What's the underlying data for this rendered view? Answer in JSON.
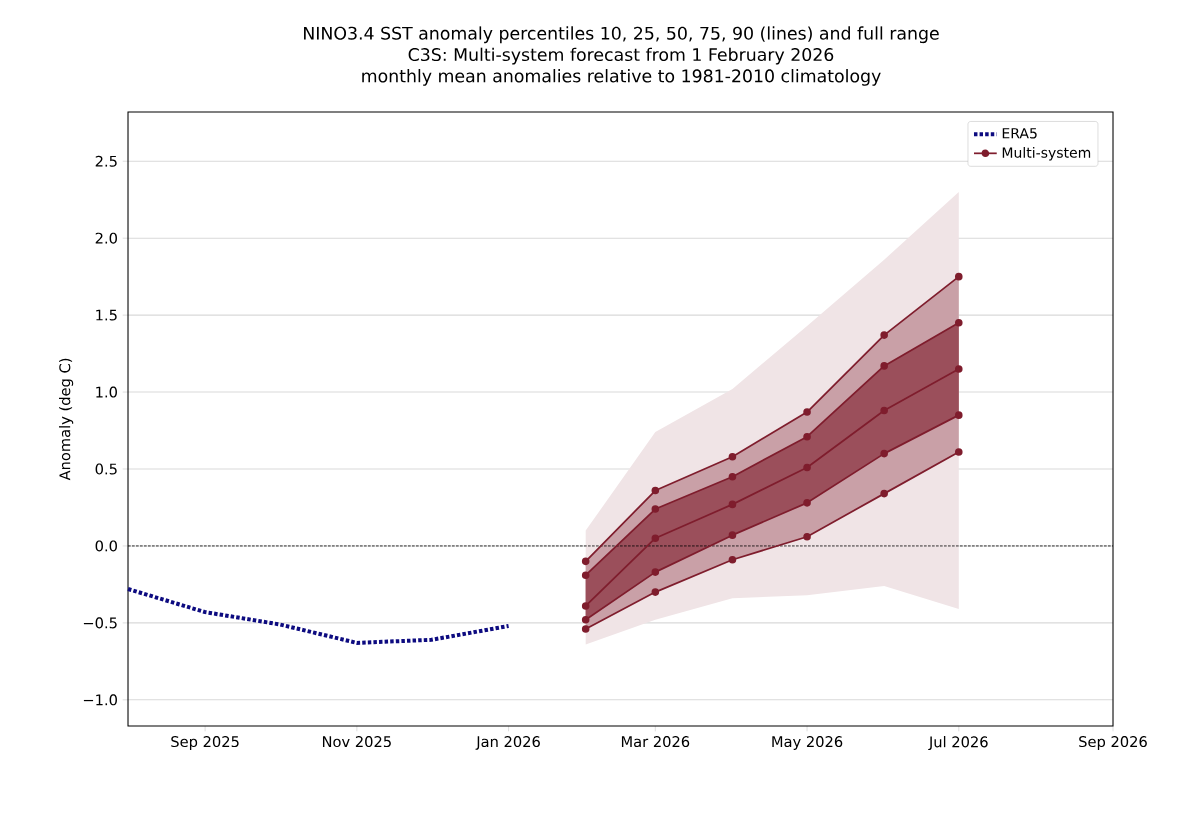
{
  "chart_data": {
    "type": "line",
    "title": "NINO3.4 SST anomaly percentiles 10, 25, 50, 75, 90 (lines) and full range",
    "subtitle": "C3S: Multi-system forecast from 1 February 2026",
    "annotations": [
      "monthly mean anomalies relative to 1981-2010 climatology"
    ],
    "ylabel": "Anomaly (deg C)",
    "x": [
      "2026-02",
      "2026-03",
      "2026-04",
      "2026-05",
      "2026-06",
      "2026-07"
    ],
    "series": [
      {
        "name": "ERA5",
        "color": "#0d0b80",
        "line_style": "dotted",
        "marker": "none",
        "x": [
          "2025-08",
          "2025-09",
          "2025-10",
          "2025-11",
          "2025-12",
          "2026-01"
        ],
        "values": [
          -0.28,
          -0.43,
          -0.51,
          -0.63,
          -0.61,
          -0.52
        ]
      },
      {
        "color": "#7f1d2d",
        "marker": "circle",
        "line_style": "solid",
        "lower": [
          -0.64,
          -0.48,
          -0.34,
          -0.32,
          -0.26,
          -0.41
        ],
        "upper": [
          0.1,
          0.74,
          1.02,
          1.43,
          1.86,
          2.3
        ],
        "values": [
          -0.54,
          -0.3,
          -0.09,
          0.06,
          0.34,
          0.61
        ]
      },
      {
        "color": "#7f1d2d",
        "marker": "circle",
        "line_style": "solid",
        "lower": [
          -0.54,
          -0.3,
          -0.09,
          0.06,
          0.34,
          0.61
        ],
        "upper": [
          -0.1,
          0.36,
          0.58,
          0.87,
          1.37,
          1.75
        ],
        "values": [
          -0.48,
          -0.17,
          0.07,
          0.28,
          0.6,
          0.85
        ]
      },
      {
        "name": "Multi-system",
        "lower": [
          -0.48,
          -0.17,
          0.07,
          0.28,
          0.6,
          0.85
        ],
        "upper": [
          -0.19,
          0.24,
          0.45,
          0.71,
          1.17,
          1.45
        ],
        "color": "#7f1d2d",
        "marker": "circle",
        "line_style": "solid",
        "values": [
          -0.39,
          0.05,
          0.27,
          0.51,
          0.88,
          1.15
        ]
      },
      {
        "color": "#7f1d2d",
        "marker": "circle",
        "line_style": "solid",
        "values": [
          -0.19,
          0.24,
          0.45,
          0.71,
          1.17,
          1.45
        ]
      },
      {
        "color": "#7f1d2d",
        "marker": "circle",
        "line_style": "solid",
        "values": [
          -0.1,
          0.36,
          0.58,
          0.87,
          1.37,
          1.75
        ]
      }
    ],
    "ref_lines": [
      {
        "axis": "y",
        "value": 0,
        "color": "#000000",
        "line_style": "dashed"
      }
    ],
    "xlim": [
      "2025-08-01",
      "2026-09-01"
    ],
    "xticks": [
      {
        "value": "2025-09-01",
        "label": "Sep 2025"
      },
      {
        "value": "2025-11-01",
        "label": "Nov 2025"
      },
      {
        "value": "2026-01-01",
        "label": "Jan 2026"
      },
      {
        "value": "2026-03-01",
        "label": "Mar 2026"
      },
      {
        "value": "2026-05-01",
        "label": "May 2026"
      },
      {
        "value": "2026-07-01",
        "label": "Jul 2026"
      },
      {
        "value": "2026-09-01",
        "label": "Sep 2026"
      }
    ],
    "ylim": [
      -1.17,
      2.82
    ],
    "yticks": [
      {
        "value": -1.0,
        "label": "−1.0"
      },
      {
        "value": -0.5,
        "label": "−0.5"
      },
      {
        "value": 0.0,
        "label": "0.0"
      },
      {
        "value": 0.5,
        "label": "0.5"
      },
      {
        "value": 1.0,
        "label": "1.0"
      },
      {
        "value": 1.5,
        "label": "1.5"
      },
      {
        "value": 2.0,
        "label": "2.0"
      },
      {
        "value": 2.5,
        "label": "2.5"
      }
    ],
    "grid": "y",
    "legend": "top right"
  }
}
